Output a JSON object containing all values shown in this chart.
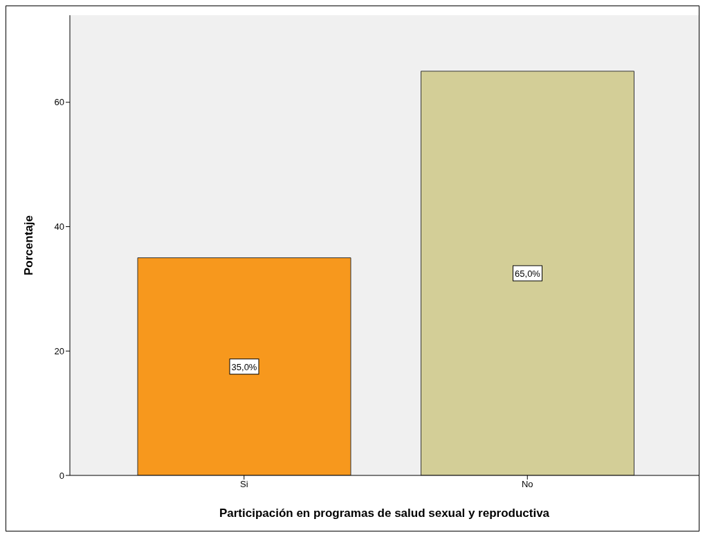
{
  "chart_data": {
    "type": "bar",
    "xlabel": "Participación en programas de salud sexual y reproductiva",
    "ylabel": "Porcentaje",
    "categories": [
      "Si",
      "No"
    ],
    "values": [
      35,
      65
    ],
    "colors": [
      "#f7981d",
      "#d3ce97"
    ],
    "value_labels": [
      "35,0%",
      "65,0%"
    ],
    "ylim": [
      0,
      74
    ],
    "yticks": [
      0,
      20,
      40,
      60
    ],
    "grid": false
  }
}
